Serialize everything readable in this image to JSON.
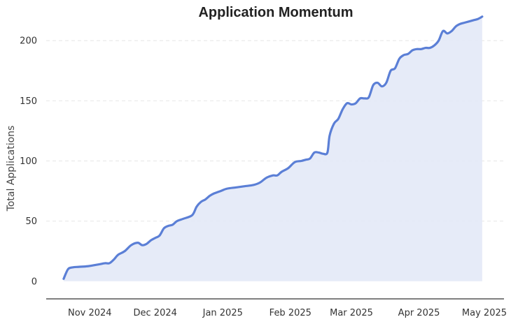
{
  "chart_data": {
    "type": "area",
    "title": "Application Momentum",
    "xlabel": "",
    "ylabel": "Total Applications",
    "x_ticks": [
      "Nov 2024",
      "Dec 2024",
      "Jan 2025",
      "Feb 2025",
      "Mar 2025",
      "Apr 2025",
      "May 2025"
    ],
    "y_ticks": [
      0,
      50,
      100,
      150,
      200
    ],
    "ylim": [
      -10,
      228
    ],
    "xlim": [
      "2024-10-12",
      "2025-05-10"
    ],
    "grid": "horizontal dashed",
    "colors": {
      "line": "#5b7fd6",
      "fill": "#e3e9f7"
    },
    "series": [
      {
        "x": [
          "2024-10-20",
          "2024-10-22",
          "2024-10-24",
          "2024-10-27",
          "2024-10-31",
          "2024-11-05",
          "2024-11-08",
          "2024-11-10",
          "2024-11-12",
          "2024-11-14",
          "2024-11-17",
          "2024-11-20",
          "2024-11-23",
          "2024-11-25",
          "2024-11-27",
          "2024-11-29",
          "2024-12-01",
          "2024-12-03",
          "2024-12-05",
          "2024-12-07",
          "2024-12-09",
          "2024-12-11",
          "2024-12-14",
          "2024-12-18",
          "2024-12-20",
          "2024-12-22",
          "2024-12-24",
          "2024-12-26",
          "2024-12-28",
          "2024-12-31",
          "2025-01-03",
          "2025-01-07",
          "2025-01-11",
          "2025-01-15",
          "2025-01-18",
          "2025-01-21",
          "2025-01-24",
          "2025-01-26",
          "2025-01-28",
          "2025-01-31",
          "2025-02-03",
          "2025-02-06",
          "2025-02-08",
          "2025-02-10",
          "2025-02-12",
          "2025-02-14",
          "2025-02-16",
          "2025-02-18",
          "2025-02-19",
          "2025-02-21",
          "2025-02-23",
          "2025-02-25",
          "2025-02-27",
          "2025-03-01",
          "2025-03-03",
          "2025-03-05",
          "2025-03-07",
          "2025-03-09",
          "2025-03-11",
          "2025-03-13",
          "2025-03-15",
          "2025-03-17",
          "2025-03-19",
          "2025-03-21",
          "2025-03-23",
          "2025-03-25",
          "2025-03-27",
          "2025-03-29",
          "2025-03-31",
          "2025-04-02",
          "2025-04-04",
          "2025-04-06",
          "2025-04-08",
          "2025-04-10",
          "2025-04-12",
          "2025-04-14",
          "2025-04-16",
          "2025-04-18",
          "2025-04-20",
          "2025-04-22",
          "2025-04-24",
          "2025-04-26",
          "2025-04-28",
          "2025-04-30"
        ],
        "y": [
          2,
          10,
          11.5,
          12,
          12.5,
          14,
          15,
          15,
          18,
          22,
          25,
          30,
          32,
          30,
          31,
          34,
          36,
          38,
          44,
          46,
          47,
          50,
          52,
          55,
          62,
          66,
          68,
          71,
          73,
          75,
          77,
          78,
          79,
          80,
          82,
          86,
          88,
          88,
          91,
          94,
          99,
          100,
          101,
          102,
          107,
          107,
          106,
          107,
          121,
          131,
          135,
          143,
          148,
          147,
          148,
          152,
          152,
          153,
          163,
          165,
          162,
          165,
          175,
          177,
          185,
          188,
          189,
          192,
          193,
          193,
          194,
          194,
          196,
          200,
          208,
          206,
          208,
          212,
          214,
          215,
          216,
          217,
          218,
          220
        ]
      }
    ]
  }
}
